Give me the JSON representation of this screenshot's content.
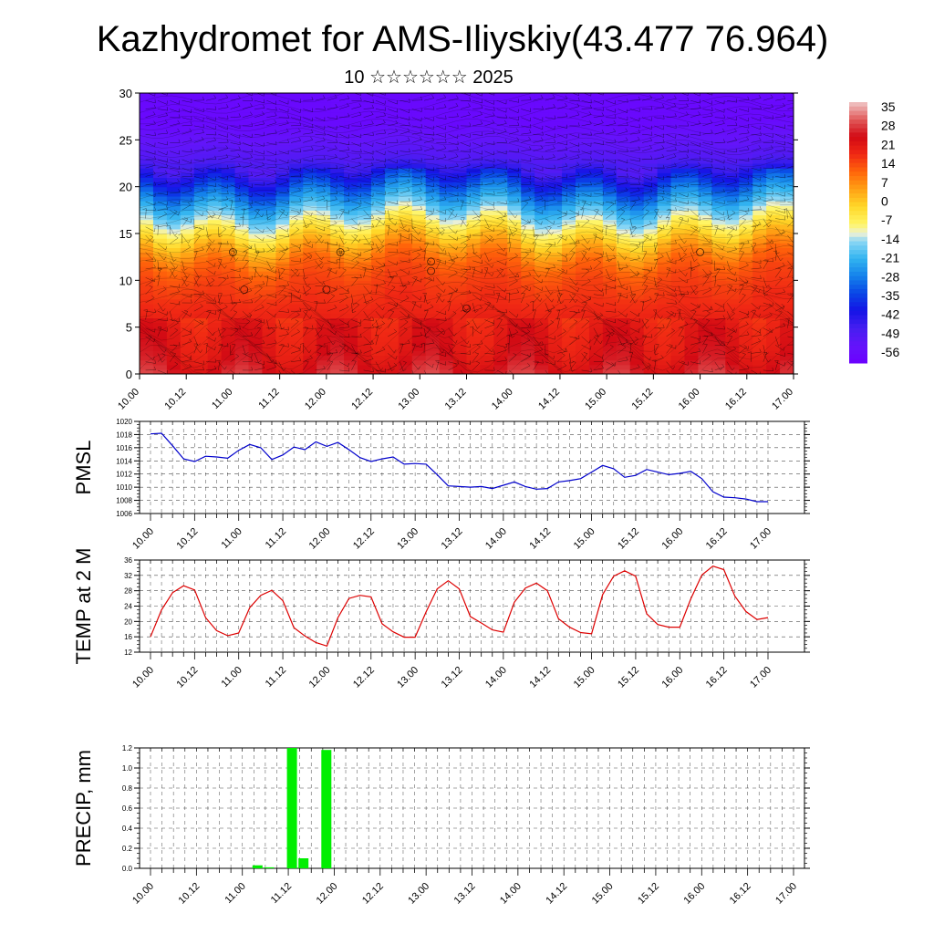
{
  "header": {
    "title": "Kazhydromet for AMS-Iliyskiy(43.477 76.964)",
    "subtitle": "10 ☆☆☆☆☆☆ 2025"
  },
  "time_labels": [
    "10.00",
    "10.12",
    "11.00",
    "11.12",
    "12.00",
    "12.12",
    "13.00",
    "13.12",
    "14.00",
    "14.12",
    "15.00",
    "15.12",
    "16.00",
    "16.12",
    "17.00"
  ],
  "chart_data": [
    {
      "type": "heatmap",
      "name_hint": "vertical temperature cross-section with wind barbs",
      "title": "",
      "xlabel": "",
      "ylabel": "",
      "ylim": [
        0,
        30
      ],
      "yticks": [
        0,
        5,
        10,
        15,
        20,
        25,
        30
      ],
      "xticks": [
        "10.00",
        "10.12",
        "11.00",
        "11.12",
        "12.00",
        "12.12",
        "13.00",
        "13.12",
        "14.00",
        "14.12",
        "15.00",
        "15.12",
        "16.00",
        "16.12",
        "17.00"
      ],
      "colorbar": {
        "labels": [
          "35",
          "28",
          "21",
          "14",
          "7",
          "0",
          "-7",
          "-14",
          "-21",
          "-28",
          "-35",
          "-42",
          "-49",
          "-56"
        ],
        "range": [
          -63,
          42
        ]
      },
      "profile": {
        "levels": [
          0,
          2,
          5,
          8,
          10,
          12,
          14,
          15.5,
          17,
          19,
          21,
          23,
          25,
          27,
          30
        ],
        "values": [
          30,
          26,
          24,
          20,
          18,
          14,
          5,
          -4,
          -14,
          -26,
          -40,
          -52,
          -56,
          -60,
          -60
        ]
      },
      "marks": {
        "circle_markers": [
          [
            11.12,
            9
          ],
          [
            11.0,
            13
          ],
          [
            12.0,
            9
          ],
          [
            12.15,
            13
          ],
          [
            13.12,
            12
          ],
          [
            13.12,
            11
          ],
          [
            13.5,
            7
          ],
          [
            16.0,
            13
          ]
        ]
      }
    },
    {
      "type": "line",
      "ylabel": "PMSL",
      "ylim": [
        1006,
        1020
      ],
      "yticks": [
        1006,
        1008,
        1010,
        1012,
        1014,
        1016,
        1018,
        1020
      ],
      "color": "#0000cc",
      "series": [
        {
          "values": [
            1018.1,
            1018.2,
            1016.3,
            1014.3,
            1013.9,
            1014.7,
            1014.6,
            1014.4,
            1015.6,
            1016.5,
            1016.0,
            1014.2,
            1014.9,
            1016.1,
            1015.7,
            1016.9,
            1016.2,
            1016.8,
            1015.7,
            1014.5,
            1013.9,
            1014.3,
            1014.6,
            1013.5,
            1013.6,
            1013.5,
            1011.9,
            1010.2,
            1010.1,
            1010.0,
            1010.1,
            1009.8,
            1010.3,
            1010.8,
            1010.1,
            1009.7,
            1009.8,
            1010.8,
            1011.0,
            1011.3,
            1012.3,
            1013.3,
            1012.8,
            1011.5,
            1011.8,
            1012.7,
            1012.3,
            1011.9,
            1012.1,
            1012.4,
            1011.3,
            1009.3,
            1008.5,
            1008.4,
            1008.2,
            1007.8,
            1007.8
          ]
        }
      ]
    },
    {
      "type": "line",
      "ylabel": "TEMP at 2 M",
      "ylim": [
        12,
        36
      ],
      "yticks": [
        12,
        16,
        20,
        24,
        28,
        32,
        36
      ],
      "color": "#dd0000",
      "series": [
        {
          "values": [
            16.0,
            23.0,
            27.5,
            29.3,
            28.2,
            21.0,
            17.6,
            16.3,
            17.0,
            23.6,
            26.8,
            28.1,
            25.4,
            18.4,
            16.2,
            14.5,
            13.6,
            21.0,
            26.0,
            26.8,
            26.4,
            19.4,
            17.3,
            15.9,
            15.9,
            22.5,
            28.5,
            30.6,
            28.5,
            21.3,
            19.6,
            17.8,
            17.2,
            25.0,
            28.7,
            30.0,
            28.0,
            20.7,
            18.5,
            17.1,
            16.8,
            27.0,
            31.8,
            33.2,
            31.8,
            22.0,
            19.2,
            18.5,
            18.5,
            25.9,
            32.1,
            34.4,
            33.5,
            26.6,
            22.6,
            20.5,
            21.0
          ]
        }
      ]
    },
    {
      "type": "bar",
      "ylabel": "PRECIP, mm",
      "ylim": [
        0,
        1.2
      ],
      "yticks": [
        "0.0",
        "0.2",
        "0.4",
        "0.6",
        "0.8",
        "1.0",
        "1.2"
      ],
      "color": "#00ee00",
      "bars": [
        {
          "step": 9,
          "value": 0.03
        },
        {
          "step": 10,
          "value": 0.01
        },
        {
          "step": 12,
          "value": 1.2
        },
        {
          "step": 13,
          "value": 0.1
        },
        {
          "step": 15,
          "value": 1.18
        }
      ]
    }
  ]
}
